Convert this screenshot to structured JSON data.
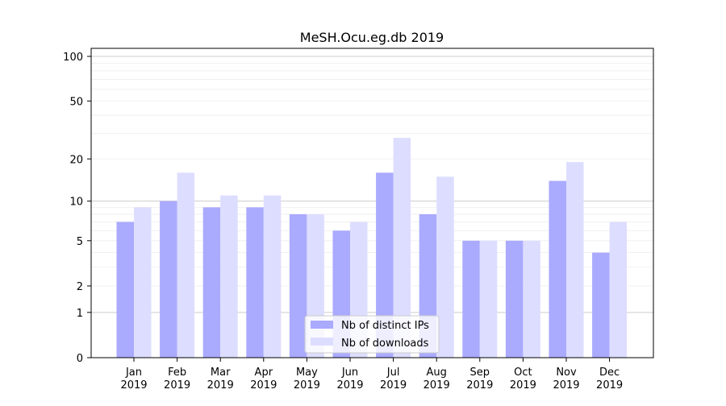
{
  "chart_data": {
    "type": "bar",
    "title": "MeSH.Ocu.eg.db 2019",
    "xlabel": "",
    "ylabel": "",
    "yscale": "symlog",
    "ylim": [
      0,
      110
    ],
    "yticks": [
      0,
      1,
      2,
      5,
      10,
      20,
      50,
      100
    ],
    "grid": true,
    "legend_position": "bottom-center",
    "categories": [
      "Jan\n2019",
      "Feb\n2019",
      "Mar\n2019",
      "Apr\n2019",
      "May\n2019",
      "Jun\n2019",
      "Jul\n2019",
      "Aug\n2019",
      "Sep\n2019",
      "Oct\n2019",
      "Nov\n2019",
      "Dec\n2019"
    ],
    "category_months": [
      "Jan",
      "Feb",
      "Mar",
      "Apr",
      "May",
      "Jun",
      "Jul",
      "Aug",
      "Sep",
      "Oct",
      "Nov",
      "Dec"
    ],
    "category_year": "2019",
    "series": [
      {
        "name": "Nb of distinct IPs",
        "color": "#aaaaff",
        "values": [
          7,
          10,
          9,
          9,
          8,
          6,
          16,
          8,
          5,
          5,
          14,
          4
        ]
      },
      {
        "name": "Nb of downloads",
        "color": "#ddddff",
        "values": [
          9,
          16,
          11,
          11,
          8,
          7,
          28,
          15,
          5,
          5,
          19,
          7
        ]
      }
    ]
  }
}
